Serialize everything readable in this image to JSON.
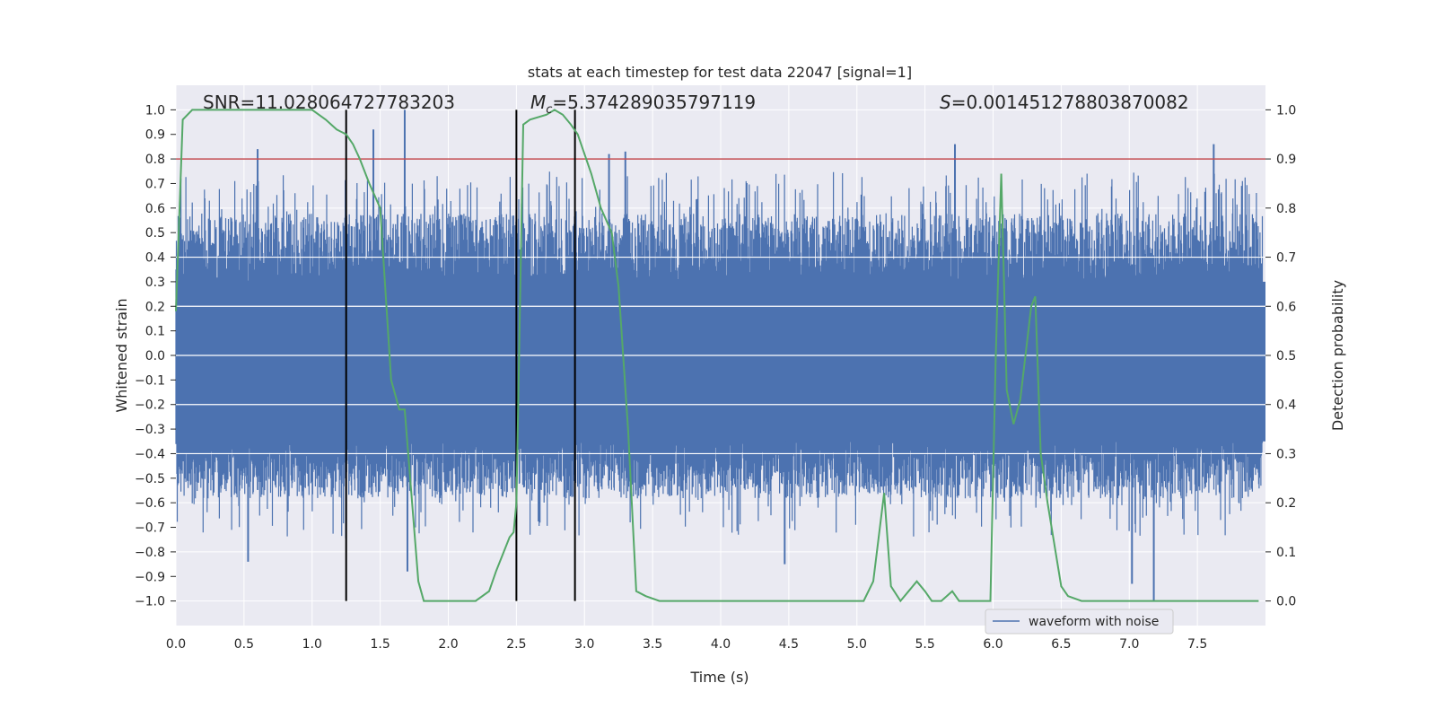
{
  "chart_data": {
    "type": "line",
    "title": "stats at each timestep for test data 22047 [signal=1]",
    "xlabel": "Time (s)",
    "ylabel": "Whitened strain",
    "ylabel_right": "Detection probability",
    "xlim": [
      0.0,
      8.0
    ],
    "ylim": [
      -1.1,
      1.1
    ],
    "ylim_right": [
      -0.05,
      1.05
    ],
    "x_ticks": [
      "0.0",
      "0.5",
      "1.0",
      "1.5",
      "2.0",
      "2.5",
      "3.0",
      "3.5",
      "4.0",
      "4.5",
      "5.0",
      "5.5",
      "6.0",
      "6.5",
      "7.0",
      "7.5"
    ],
    "y_ticks": [
      "1.0",
      "0.9",
      "0.8",
      "0.7",
      "0.6",
      "0.5",
      "0.4",
      "0.3",
      "0.2",
      "0.1",
      "0.0",
      "−0.1",
      "−0.2",
      "−0.3",
      "−0.4",
      "−0.5",
      "−0.6",
      "−0.7",
      "−0.8",
      "−0.9",
      "−1.0"
    ],
    "y_right_ticks": [
      "1.0",
      "0.9",
      "0.8",
      "0.7",
      "0.6",
      "0.5",
      "0.4",
      "0.3",
      "0.2",
      "0.1",
      "0.0"
    ],
    "grid": true,
    "legend_position": "lower-right",
    "annotations": {
      "snr_text": "SNR=11.028064727783203",
      "mc_symbol": "M",
      "mc_subscript": "c",
      "mc_value": "=5.374289035797119",
      "s_symbol": "S",
      "s_value": "=0.001451278803870082"
    },
    "series": [
      {
        "name": "waveform with noise",
        "color": "#4c72b0",
        "axis": "left",
        "envelope": "noise within approx ±0.7, peaks to ±1.0",
        "spikes": [
          {
            "x": 0.6,
            "y": 0.84
          },
          {
            "x": 1.45,
            "y": 0.92
          },
          {
            "x": 1.68,
            "y": 1.0
          },
          {
            "x": 3.18,
            "y": 0.82
          },
          {
            "x": 3.3,
            "y": 0.83
          },
          {
            "x": 5.72,
            "y": 0.86
          },
          {
            "x": 7.62,
            "y": 0.86
          },
          {
            "x": 0.53,
            "y": -0.84
          },
          {
            "x": 1.7,
            "y": -0.88
          },
          {
            "x": 4.47,
            "y": -0.85
          },
          {
            "x": 7.02,
            "y": -0.93
          },
          {
            "x": 7.18,
            "y": -1.0
          }
        ]
      },
      {
        "name": "",
        "color": "#55a868",
        "axis": "right",
        "x": [
          0.0,
          0.05,
          0.12,
          0.3,
          0.6,
          0.9,
          1.0,
          1.1,
          1.18,
          1.25,
          1.3,
          1.35,
          1.42,
          1.5,
          1.58,
          1.64,
          1.68,
          1.72,
          1.78,
          1.82,
          1.95,
          2.2,
          2.3,
          2.35,
          2.45,
          2.48,
          2.5,
          2.55,
          2.6,
          2.72,
          2.78,
          2.84,
          2.9,
          2.95,
          3.05,
          3.12,
          3.2,
          3.25,
          3.32,
          3.38,
          3.45,
          3.55,
          3.8,
          4.2,
          4.8,
          5.05,
          5.12,
          5.2,
          5.25,
          5.32,
          5.38,
          5.44,
          5.5,
          5.55,
          5.62,
          5.7,
          5.75,
          5.8,
          5.88,
          5.93,
          5.98,
          6.02,
          6.06,
          6.1,
          6.15,
          6.2,
          6.28,
          6.31,
          6.35,
          6.4,
          6.5,
          6.55,
          6.65,
          6.9,
          7.2,
          7.5,
          7.95
        ],
        "y": [
          0.59,
          0.98,
          1.0,
          1.0,
          1.0,
          1.0,
          1.0,
          0.98,
          0.96,
          0.95,
          0.93,
          0.9,
          0.85,
          0.8,
          0.45,
          0.39,
          0.39,
          0.25,
          0.04,
          0.0,
          0.0,
          0.0,
          0.02,
          0.06,
          0.13,
          0.14,
          0.2,
          0.97,
          0.98,
          0.99,
          1.0,
          0.99,
          0.97,
          0.95,
          0.87,
          0.8,
          0.75,
          0.64,
          0.35,
          0.02,
          0.01,
          0.0,
          0.0,
          0.0,
          0.0,
          0.0,
          0.04,
          0.22,
          0.03,
          0.0,
          0.02,
          0.04,
          0.02,
          0.0,
          0.0,
          0.02,
          0.0,
          0.0,
          0.0,
          0.0,
          0.0,
          0.5,
          0.87,
          0.43,
          0.36,
          0.41,
          0.6,
          0.62,
          0.3,
          0.2,
          0.03,
          0.01,
          0.0,
          0.0,
          0.0,
          0.0,
          0.0
        ]
      }
    ],
    "hlines": [
      {
        "y": 0.8,
        "color": "#c44e52",
        "axis": "left"
      }
    ],
    "vlines": [
      {
        "x": 1.25,
        "ymin": -1.0,
        "ymax": 1.0,
        "color": "#000000"
      },
      {
        "x": 2.5,
        "ymin": -1.0,
        "ymax": 1.0,
        "color": "#000000"
      },
      {
        "x": 2.93,
        "ymin": -1.0,
        "ymax": 1.0,
        "color": "#000000"
      }
    ],
    "colors": {
      "axes_background": "#eaeaf2",
      "grid": "#ffffff"
    }
  }
}
